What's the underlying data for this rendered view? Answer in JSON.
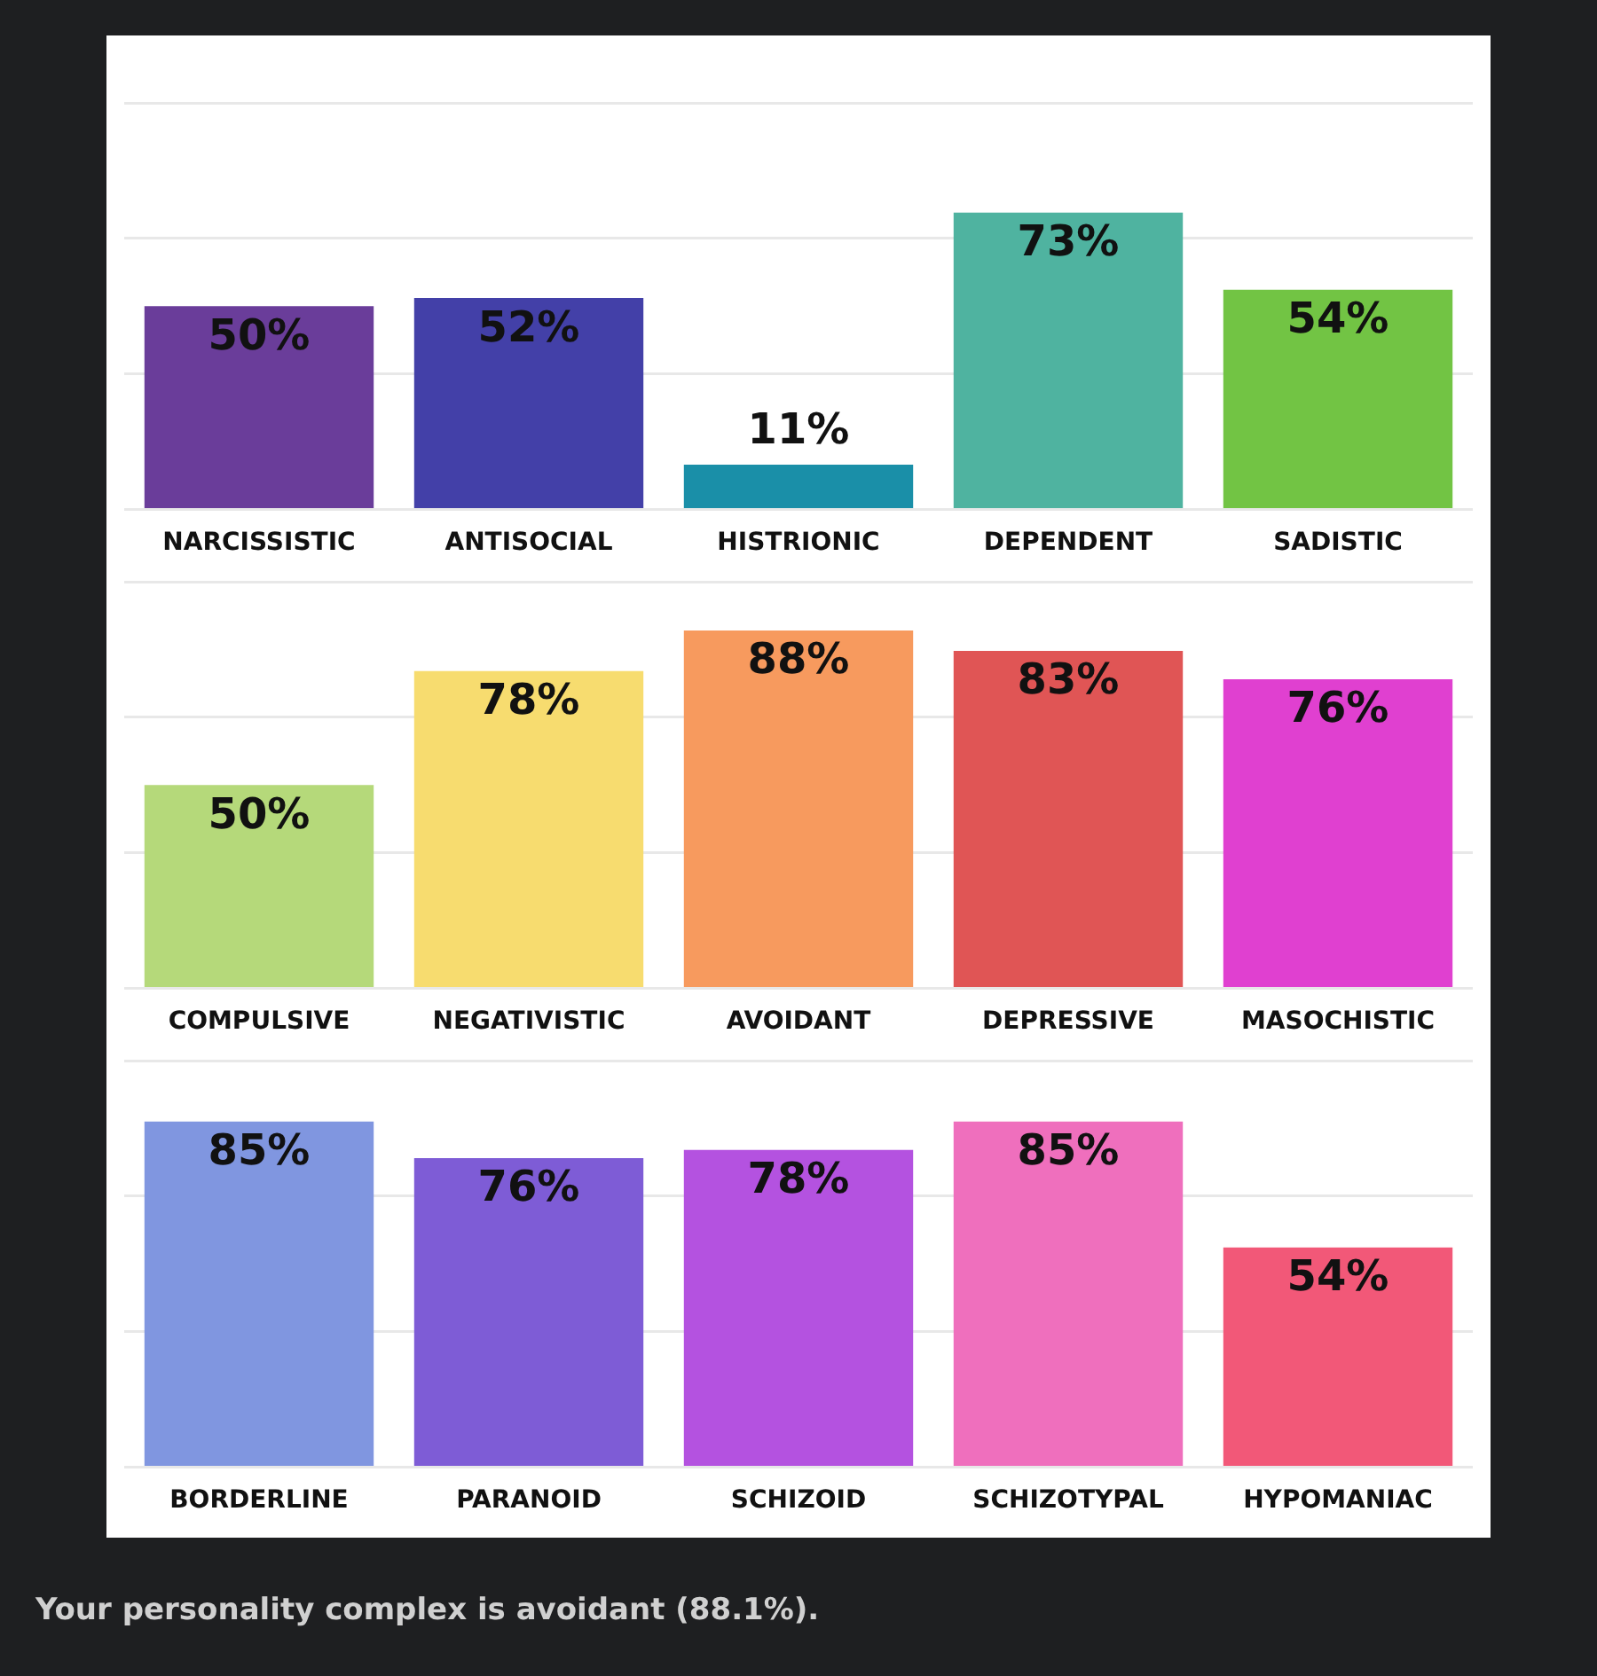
{
  "chart_data": [
    {
      "type": "bar",
      "categories": [
        "NARCISSISTIC",
        "ANTISOCIAL",
        "HISTRIONIC",
        "DEPENDENT",
        "SADISTIC"
      ],
      "values": [
        50,
        52,
        11,
        73,
        54
      ],
      "value_labels": [
        "50%",
        "52%",
        "11%",
        "73%",
        "54%"
      ],
      "colors": [
        "#6a3d9a",
        "#4340a8",
        "#1a8fa8",
        "#4fb3a0",
        "#72c444"
      ],
      "ylim": [
        0,
        100
      ],
      "yticks": [
        {
          "value": 0,
          "label": null
        },
        {
          "value": 33.3,
          "label": null
        },
        {
          "value": 66.7,
          "label": null
        },
        {
          "value": 100,
          "label": null
        }
      ],
      "grid": "y",
      "tick_labels": "x"
    },
    {
      "type": "bar",
      "categories": [
        "COMPULSIVE",
        "NEGATIVISTIC",
        "AVOIDANT",
        "DEPRESSIVE",
        "MASOCHISTIC"
      ],
      "values": [
        50,
        78,
        88,
        83,
        76
      ],
      "value_labels": [
        "50%",
        "78%",
        "88%",
        "83%",
        "76%"
      ],
      "colors": [
        "#b5d97a",
        "#f7dc6f",
        "#f79a5e",
        "#e05555",
        "#e040d0"
      ],
      "ylim": [
        0,
        100
      ],
      "yticks": [
        {
          "value": 0,
          "label": null
        },
        {
          "value": 33.3,
          "label": null
        },
        {
          "value": 66.7,
          "label": null
        },
        {
          "value": 100,
          "label": null
        }
      ],
      "grid": "y",
      "tick_labels": "x"
    },
    {
      "type": "bar",
      "categories": [
        "BORDERLINE",
        "PARANOID",
        "SCHIZOID",
        "SCHIZOTYPAL",
        "HYPOMANIAC"
      ],
      "values": [
        85,
        76,
        78,
        85,
        54
      ],
      "value_labels": [
        "85%",
        "76%",
        "78%",
        "85%",
        "54%"
      ],
      "colors": [
        "#8096e0",
        "#7e5cd6",
        "#b452e0",
        "#ef6fbd",
        "#f25878"
      ],
      "ylim": [
        0,
        100
      ],
      "yticks": [
        {
          "value": 0,
          "label": null
        },
        {
          "value": 33.3,
          "label": null
        },
        {
          "value": 66.7,
          "label": null
        },
        {
          "value": 100,
          "label": null
        }
      ],
      "grid": "y",
      "tick_labels": "x",
      "annotations": [
        "Your personality complex is avoidant (88.1%)."
      ]
    }
  ]
}
